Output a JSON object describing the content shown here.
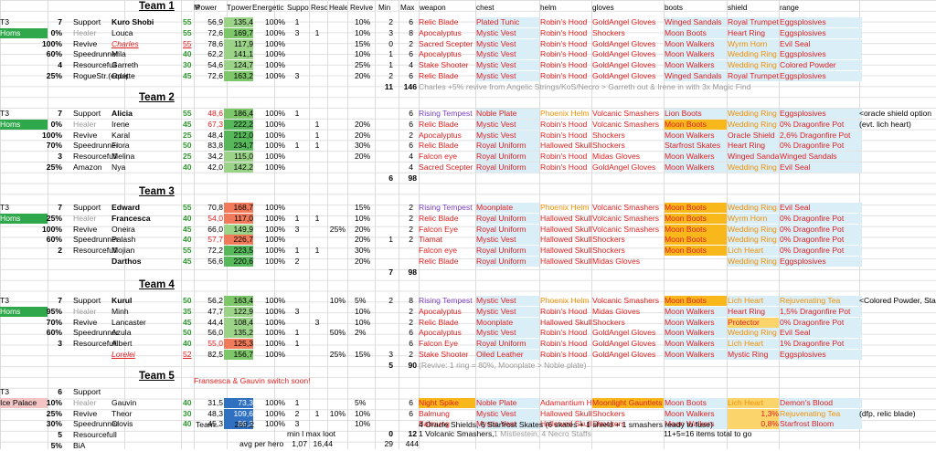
{
  "headers": {
    "M": "M",
    "power": "Power",
    "tpower": "Tpower",
    "energetic": "Energetic",
    "support": "Support",
    "reso": "Resou",
    "healer": "Healer",
    "revive": "Revive",
    "min": "Min",
    "max": "Max",
    "weapon": "weapon",
    "chest": "chest",
    "helm": "helm",
    "gloves": "gloves",
    "boots": "boots",
    "shield": "shield",
    "range": "range"
  },
  "teams": [
    {
      "title": "Team 1",
      "tier": "T3",
      "place": "Homs",
      "rows": [
        {
          "n": "7",
          "pct": "",
          "role": "Support",
          "name": "Kuro Shobi",
          "lvl": "55",
          "pw": "56,9",
          "tp": "135,4",
          "en": "100%",
          "su": "1",
          "re": "",
          "he": "",
          "rv": "10%",
          "mn": "2",
          "mx": "6",
          "wp": "Relic Blade",
          "ch": "Plated Tunic",
          "hm": "Robin's Hood",
          "gl": "GoldAngel Gloves",
          "bt": "Winged Sandals",
          "sh": "Royal Trumpet",
          "rg": "Eggsplosives"
        },
        {
          "n": "0%",
          "pct": "",
          "role": "Healer",
          "name": "Louca",
          "lvl": "55",
          "pw": "72,6",
          "tp": "169,7",
          "en": "100%",
          "su": "3",
          "re": "1",
          "he": "",
          "rv": "10%",
          "mn": "3",
          "mx": "8",
          "wp": "Apocalyptus",
          "ch": "Mystic Vest",
          "hm": "Robin's Hood",
          "gl": "Shockers",
          "bt": "Moon Boots",
          "sh": "Heart Ring",
          "rg": "Eggsplosives"
        },
        {
          "n": "100%",
          "pct": "",
          "role": "Revive",
          "name": "Charles",
          "lvl": "55",
          "pw": "78,6",
          "tp": "117,9",
          "en": "100%",
          "su": "",
          "re": "",
          "he": "",
          "rv": "15%",
          "mn": "0",
          "mx": "2",
          "wp": "Sacred Scepter",
          "ch": "Mystic Vest",
          "hm": "Robin's Hood",
          "gl": "GoldAngel Gloves",
          "bt": "Moon Walkers",
          "sh": "Wyrm Horn",
          "rg": "Evil Seal"
        },
        {
          "n": "60%",
          "pct": "",
          "role": "Speedrunner",
          "name": "Mila",
          "lvl": "40",
          "pw": "62,2",
          "tp": "141,1",
          "en": "100%",
          "su": "",
          "re": "",
          "he": "",
          "rv": "10%",
          "mn": "1",
          "mx": "6",
          "wp": "Apocalyptus",
          "ch": "Mystic Vest",
          "hm": "Robin's Hood",
          "gl": "GoldAngel Gloves",
          "bt": "Moon Walkers",
          "sh": "Wedding Ring",
          "rg": "Eggsplosives"
        },
        {
          "n": "4",
          "pct": "",
          "role": "Resourcefull",
          "name": "Garreth",
          "lvl": "30",
          "pw": "54,6",
          "tp": "124,7",
          "en": "100%",
          "su": "",
          "re": "",
          "he": "",
          "rv": "25%",
          "mn": "1",
          "mx": "4",
          "wp": "Stake Shooter",
          "ch": "Mystic Vest",
          "hm": "Robin's Hood",
          "gl": "GoldAngel Gloves",
          "bt": "Moon Walkers",
          "sh": "Wedding Ring",
          "rg": "Colored Powder"
        },
        {
          "n": "25%",
          "pct": "",
          "role": "RogueStr.(equip)",
          "name": "Odette",
          "lvl": "45",
          "pw": "72,6",
          "tp": "163,2",
          "en": "100%",
          "su": "3",
          "re": "",
          "he": "",
          "rv": "20%",
          "mn": "2",
          "mx": "6",
          "wp": "Relic Blade",
          "ch": "Mystic Vest",
          "hm": "Robin's Hood",
          "gl": "GoldAngel Gloves",
          "bt": "Winged Sandals",
          "sh": "Royal Trumpet",
          "rg": "Eggsplosives"
        }
      ],
      "sum_min": "11",
      "sum_max": "146",
      "note": "Charles +5% revive from Angelic Strings/KoS/Necro > Garreth out & Irene in with 3x Magic Find"
    },
    {
      "title": "Team 2",
      "tier": "T3",
      "place": "Homs",
      "rows": [
        {
          "n": "7",
          "role": "Support",
          "name": "Alicia",
          "lvl": "55",
          "pw": "48,6",
          "tp": "186,4",
          "en": "100%",
          "su": "1",
          "re": "",
          "he": "",
          "rv": "",
          "mn": "",
          "mx": "6",
          "wp": "Rising Tempest",
          "ch": "Noble Plate",
          "hm": "Phoenix Helm",
          "gl": "Volcanic Smashers",
          "bt": "Lion Boots",
          "sh": "Wedding Ring",
          "rg": "Eggsplosives"
        },
        {
          "n": "0%",
          "role": "Healer",
          "name": "Irene",
          "lvl": "45",
          "pw": "67,3",
          "tp": "222,2",
          "en": "100%",
          "su": "",
          "re": "1",
          "he": "",
          "rv": "20%",
          "mn": "",
          "mx": "6",
          "wp": "Relic Blade",
          "ch": "Mystic Vest",
          "hm": "Robin's Hood",
          "gl": "Volcanic Smashers",
          "bt": "Moon Boots",
          "sh": "Wedding Ring",
          "rg": "0% Dragonfire Pot"
        },
        {
          "n": "100%",
          "role": "Revive",
          "name": "Karal",
          "lvl": "25",
          "pw": "48,4",
          "tp": "212,0",
          "en": "100%",
          "su": "",
          "re": "1",
          "he": "",
          "rv": "20%",
          "mn": "",
          "mx": "2",
          "wp": "Apocalyptus",
          "ch": "Mystic Vest",
          "hm": "Robin's Hood",
          "gl": "Shockers",
          "bt": "Moon Walkers",
          "sh": "Oracle Shield",
          "rg": "2,6% Dragonfire Pot"
        },
        {
          "n": "70%",
          "role": "Speedrunner",
          "name": "Fiora",
          "lvl": "50",
          "pw": "83,8",
          "tp": "234,7",
          "en": "100%",
          "su": "1",
          "re": "1",
          "he": "",
          "rv": "30%",
          "mn": "",
          "mx": "6",
          "wp": "Relic Blade",
          "ch": "Royal Uniform",
          "hm": "Hallowed Skull",
          "gl": "Shockers",
          "bt": "Starfrost Skates",
          "sh": "Heart Ring",
          "rg": "0% Dragonfire Pot"
        },
        {
          "n": "3",
          "role": "Resourcefull",
          "name": "Melina",
          "lvl": "25",
          "pw": "34,2",
          "tp": "115,0",
          "en": "100%",
          "su": "",
          "re": "",
          "he": "",
          "rv": "20%",
          "mn": "",
          "mx": "4",
          "wp": "Falcon eye",
          "ch": "Royal Uniform",
          "hm": "Robin's Hood",
          "gl": "Midas Gloves",
          "bt": "Moon Walkers",
          "sh": "Winged Sandals",
          "rg": "Winged Sandals"
        },
        {
          "n": "25%",
          "role": "Amazon",
          "name": "Nya",
          "lvl": "40",
          "pw": "42,0",
          "tp": "142,2",
          "en": "100%",
          "su": "",
          "re": "",
          "he": "",
          "rv": "",
          "mn": "",
          "mx": "4",
          "wp": "Sacred Scepter",
          "ch": "Royal Uniform",
          "hm": "Robin's Hood",
          "gl": "GoldAngel Gloves",
          "bt": "Moon Walkers",
          "sh": "Wedding Ring",
          "rg": "Evil Seal"
        }
      ],
      "sum_min": "6",
      "sum_max": "98",
      "note": ""
    },
    {
      "title": "Team 3",
      "tier": "T3",
      "place": "Homs",
      "rows": [
        {
          "n": "7",
          "role": "Support",
          "name": "Edward",
          "lvl": "55",
          "pw": "70,8",
          "tp": "168,7",
          "en": "100%",
          "su": "",
          "re": "",
          "he": "",
          "rv": "15%",
          "mn": "",
          "mx": "2",
          "wp": "Rising Tempest",
          "ch": "Moonplate",
          "hm": "Phoenix Helm",
          "gl": "Volcanic Smashers",
          "bt": "Moon Boots",
          "sh": "Wedding Ring",
          "rg": "Evil Seal"
        },
        {
          "n": "25%",
          "role": "Healer",
          "name": "Francesca",
          "lvl": "40",
          "pw": "54,0",
          "tp": "117,0",
          "en": "100%",
          "su": "1",
          "re": "1",
          "he": "",
          "rv": "10%",
          "mn": "",
          "mx": "2",
          "wp": "Relic Blade",
          "ch": "Royal Uniform",
          "hm": "Hallowed Skull",
          "gl": "Volcanic Smashers",
          "bt": "Moon Boots",
          "sh": "Wyrm Horn",
          "rg": "0% Dragonfire Pot"
        },
        {
          "n": "100%",
          "role": "Revive",
          "name": "Oneira",
          "lvl": "45",
          "pw": "66,0",
          "tp": "149,9",
          "en": "100%",
          "su": "3",
          "re": "",
          "he": "25%",
          "rv": "20%",
          "mn": "",
          "mx": "2",
          "wp": "Falcon Eye",
          "ch": "Royal Uniform",
          "hm": "Hallowed Skull",
          "gl": "Volcanic Smashers",
          "bt": "Moon Boots",
          "sh": "Wedding Ring",
          "rg": "0% Dragonfire Pot"
        },
        {
          "n": "60%",
          "role": "Speedrunner",
          "name": "Palash",
          "lvl": "40",
          "pw": "57,7",
          "tp": "226,7",
          "en": "100%",
          "su": "",
          "re": "",
          "he": "",
          "rv": "20%",
          "mn": "1",
          "mx": "2",
          "wp": "Tiamat",
          "ch": "Mystic Vest",
          "hm": "Hallowed Skull",
          "gl": "Shockers",
          "bt": "Moon Boots",
          "sh": "Wedding Ring",
          "rg": "0% Dragonfire Pot"
        },
        {
          "n": "2",
          "role": "Resourcefull",
          "name": "Mojian",
          "lvl": "55",
          "pw": "72,2",
          "tp": "223,5",
          "en": "100%",
          "su": "1",
          "re": "1",
          "he": "",
          "rv": "30%",
          "mn": "",
          "mx": "",
          "wp": "Falcon eye",
          "ch": "Royal Uniform",
          "hm": "Hallowed Skull",
          "gl": "Shockers",
          "bt": "Moon Boots",
          "sh": "Lich Heart",
          "rg": "0% Dragonfire Pot"
        },
        {
          "n": "",
          "role": "",
          "name": "Darthos",
          "lvl": "45",
          "pw": "56,6",
          "tp": "220,6",
          "en": "100%",
          "su": "2",
          "re": "",
          "he": "",
          "rv": "20%",
          "mn": "",
          "mx": "",
          "wp": "Relic Blade",
          "ch": "Royal Uniform",
          "hm": "Hallowed Skull",
          "gl": "Midas Gloves",
          "bt": "",
          "sh": "Wedding Ring",
          "rg": "Eggsplosives"
        }
      ],
      "sum_min": "7",
      "sum_max": "98",
      "note": ""
    },
    {
      "title": "Team 4",
      "tier": "T3",
      "place": "Homs",
      "rows": [
        {
          "n": "7",
          "role": "Support",
          "name": "Kurul",
          "lvl": "50",
          "pw": "56,2",
          "tp": "163,4",
          "en": "100%",
          "su": "",
          "re": "",
          "he": "10%",
          "rv": "5%",
          "mn": "2",
          "mx": "8",
          "wp": "Rising Tempest",
          "ch": "Mystic Vest",
          "hm": "Phoenix Helm",
          "gl": "Volcanic Smashers",
          "bt": "Moon Boots",
          "sh": "Lich Heart",
          "rg": "Rejuvenating Tea"
        },
        {
          "n": "95%",
          "role": "Healer",
          "name": "Minh",
          "lvl": "35",
          "pw": "47,7",
          "tp": "122,9",
          "en": "100%",
          "su": "3",
          "re": "",
          "he": "",
          "rv": "10%",
          "mn": "",
          "mx": "2",
          "wp": "Apocalyptus",
          "ch": "Mystic Vest",
          "hm": "Robin's Hood",
          "gl": "Midas Gloves",
          "bt": "Moon Walkers",
          "sh": "Heart Ring",
          "rg": "1,5% Dragonfire Pot"
        },
        {
          "n": "70%",
          "role": "Revive",
          "name": "Lancaster",
          "lvl": "45",
          "pw": "44,4",
          "tp": "108,4",
          "en": "100%",
          "su": "",
          "re": "3",
          "he": "",
          "rv": "10%",
          "mn": "",
          "mx": "2",
          "wp": "Relic Blade",
          "ch": "Moonplate",
          "hm": "Hallowed Skull",
          "gl": "Shockers",
          "bt": "Moon Walkers",
          "sh": "Protector",
          "rg": "0% Dragonfire Pot"
        },
        {
          "n": "60%",
          "role": "Speedrunner",
          "name": "Azula",
          "lvl": "50",
          "pw": "56,0",
          "tp": "135,2",
          "en": "100%",
          "su": "1",
          "re": "",
          "he": "50%",
          "rv": "2%",
          "mn": "",
          "mx": "6",
          "wp": "Apocalyptus",
          "ch": "Mystic Vest",
          "hm": "Robin's Hood",
          "gl": "GoldAngel Gloves",
          "bt": "Moon Walkers",
          "sh": "Wedding Ring",
          "rg": "Evil Seal"
        },
        {
          "n": "3",
          "role": "Resourcefull",
          "name": "Albert",
          "lvl": "40",
          "pw": "55,0",
          "tp": "125,3",
          "en": "100%",
          "su": "1",
          "re": "",
          "he": "",
          "rv": "",
          "mn": "",
          "mx": "6",
          "wp": "Falcon Eye",
          "ch": "Royal Uniform",
          "hm": "Robin's Hood",
          "gl": "GoldAngel Gloves",
          "bt": "Moon Walkers",
          "sh": "Lich Heart",
          "rg": "1% Dragonfire Pot"
        },
        {
          "n": "",
          "role": "",
          "name": "Lorelei",
          "lvl": "52",
          "pw": "82,5",
          "tp": "156,7",
          "en": "100%",
          "su": "",
          "re": "",
          "he": "25%",
          "rv": "15%",
          "mn": "3",
          "mx": "2",
          "wp": "Stake Shooter",
          "ch": "Oiled Leather",
          "hm": "Robin's Hood",
          "gl": "GoldAngel Gloves",
          "bt": "Moon Walkers",
          "sh": "Mystic Ring",
          "rg": "Eggsplosives"
        }
      ],
      "sum_min": "5",
      "sum_max": "90",
      "note": "(Revive: 1 ring = 80%, Moonplate > Noble plate)"
    },
    {
      "title": "Team 5",
      "tier": "T3",
      "place": "Ice Palace",
      "rows": [
        {
          "n": "6",
          "role": "Support",
          "name": "",
          "lvl": "",
          "pw": "",
          "tp": "",
          "en": "",
          "su": "",
          "re": "",
          "he": "",
          "rv": "",
          "mn": "",
          "mx": "",
          "wp": "",
          "ch": "",
          "hm": "",
          "gl": "",
          "bt": "",
          "sh": "",
          "rg": ""
        },
        {
          "n": "10%",
          "role": "Healer",
          "name": "Gauvin",
          "lvl": "40",
          "pw": "31,5",
          "tp": "73,3",
          "en": "100%",
          "su": "1",
          "re": "",
          "he": "",
          "rv": "5%",
          "mn": "",
          "mx": "6",
          "wp": "Night Spike",
          "ch": "Noble Plate",
          "hm": "Adamantium H",
          "gl": "Moonlight Gauntlets",
          "bt": "Moon Boots",
          "sh": "Lich Heart",
          "rg": "Demon's Blood"
        },
        {
          "n": "25%",
          "role": "Revive",
          "name": "Theor",
          "lvl": "30",
          "pw": "48,3",
          "tp": "109,6",
          "en": "100%",
          "su": "2",
          "re": "1",
          "he": "10%",
          "rv": "10%",
          "mn": "",
          "mx": "6",
          "wp": "Balmung",
          "ch": "Mystic Vest",
          "hm": "Hallowed Skull",
          "gl": "Shockers",
          "bt": "Moon Walkers",
          "sh": "1,3%",
          "rg": "Rejuvenating Tea"
        },
        {
          "n": "30%",
          "role": "Speedrunner",
          "name": "Clovis",
          "lvl": "40",
          "pw": "45,3",
          "tp": "86,3",
          "en": "100%",
          "su": "3",
          "re": "",
          "he": "",
          "rv": "10%",
          "mn": "",
          "mx": "",
          "wp": "Balmung",
          "ch": "Mystic Vest",
          "hm": "Hallowed Skull",
          "gl": "Shockers",
          "bt": "Moon Walkers",
          "sh": "0,8%",
          "rg": "Starfrost Bloom"
        },
        {
          "n": "5",
          "role": "Resourcefull",
          "name": "",
          "lvl": "",
          "pw": "",
          "tp": "",
          "en": "",
          "su": "",
          "re": "",
          "he": "",
          "rv": "",
          "mn": "",
          "mx": "",
          "wp": "",
          "ch": "",
          "hm": "",
          "gl": "",
          "bt": "",
          "sh": "",
          "rg": ""
        },
        {
          "n": "5%",
          "role": "BiA",
          "name": "",
          "lvl": "",
          "pw": "",
          "tp": "",
          "en": "",
          "su": "",
          "re": "",
          "he": "",
          "rv": "",
          "mn": "",
          "mx": "",
          "wp": "",
          "ch": "",
          "hm": "",
          "gl": "",
          "bt": "",
          "sh": "",
          "rg": ""
        }
      ]
    }
  ],
  "notes": {
    "t2_side": "<oracle shield option",
    "t2_side2": "(evt. lich heart)",
    "t4_side": "<Colored Powder, Sta",
    "t5_switch": "Fransesca & Gauvin switch soon!",
    "team_label": "Team:",
    "team_total": "269,2",
    "oracle_line": "4 Oracle Shields, 6 Starfrost Skates (6 skates + 1 shield + 1 smashers ready to fuse)",
    "volcanic_line": "1 Volcanic Smashers,",
    "mistle_line": "1 Mistlestein, 4 Necro Staffs",
    "items_total": "11+5=16 items total to go",
    "dfp": "(dfp, relic blade)",
    "minmax_label": "min l max loot",
    "avg_label": "avg per hero",
    "avg_min": "1,07",
    "avg_max": "16,44",
    "sum_a_min": "0",
    "sum_a_max": "12",
    "sum_b_min": "29",
    "sum_b_max": "444"
  },
  "colors": {
    "green": "#2ea84a",
    "lightblue": "#daeef8",
    "orange": "#f8b81c",
    "pink": "#f2c4c4"
  }
}
